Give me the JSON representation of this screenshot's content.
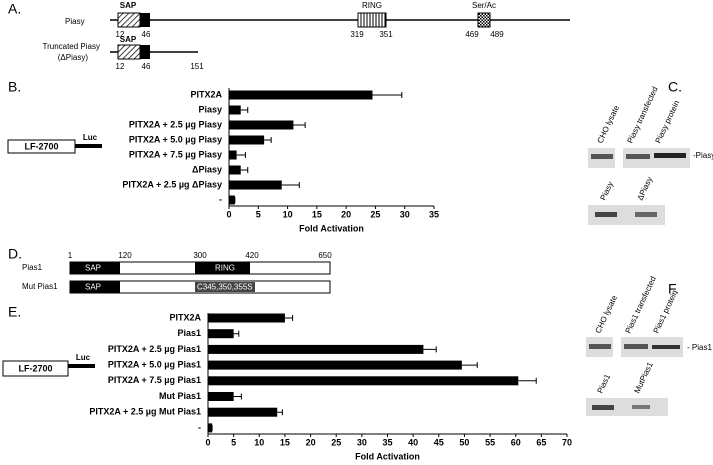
{
  "panel_a": {
    "label": "A.",
    "protein": "Piasy",
    "sap": "SAP",
    "ring": "RING",
    "serac": "Ser/Ac",
    "positions": [
      "12",
      "46",
      "319",
      "351",
      "469",
      "489"
    ],
    "truncated_line1": "Truncated Piasy",
    "truncated_line2": "(ΔPiasy)",
    "truncated_sap": "SAP",
    "truncated_positions": [
      "12",
      "46",
      "151"
    ]
  },
  "chart_data": [
    {
      "type": "bar",
      "panel_label": "B.",
      "reporter": {
        "label": "LF-2700",
        "tag": "Luc"
      },
      "categories": [
        "PITX2A",
        "Piasy",
        "PITX2A + 2.5 µg Piasy",
        "PITX2A + 5.0 µg Piasy",
        "PITX2A + 7.5 µg Piasy",
        "ΔPiasy",
        "PITX2A + 2.5 µg ΔPiasy",
        "-"
      ],
      "values": [
        24.5,
        2,
        11,
        6,
        1.3,
        2,
        9,
        1
      ],
      "errors": [
        5,
        1.2,
        2,
        1.2,
        1.5,
        1.2,
        3,
        0
      ],
      "color": "#000000",
      "xlim": [
        0,
        35
      ],
      "xticks": [
        0,
        5,
        10,
        15,
        20,
        25,
        30,
        35
      ],
      "xlabel": "Fold Activation",
      "grid": false
    },
    {
      "type": "bar",
      "panel_label": "E.",
      "reporter": {
        "label": "LF-2700",
        "tag": "Luc"
      },
      "categories": [
        "PITX2A",
        "Pias1",
        "PITX2A + 2.5 µg Pias1",
        "PITX2A + 5.0 µg Pias1",
        "PITX2A + 7.5 µg Pias1",
        "Mut Pias1",
        "PITX2A + 2.5 µg Mut Pias1",
        "-"
      ],
      "values": [
        15,
        5,
        42,
        49.5,
        60.5,
        5,
        13.5,
        0.8
      ],
      "errors": [
        1.5,
        1,
        2.5,
        3,
        3.5,
        1.5,
        1,
        0
      ],
      "color": "#000000",
      "xlim": [
        0,
        70
      ],
      "xticks": [
        0,
        5,
        10,
        15,
        20,
        25,
        30,
        35,
        40,
        45,
        50,
        55,
        60,
        65,
        70
      ],
      "xlabel": "Fold Activation",
      "grid": false
    }
  ],
  "panel_c": {
    "label": "C.",
    "lanes": [
      "CHO lysate",
      "Piasy transfected",
      "Piasy protein"
    ],
    "band": "-Piasy",
    "lanes2": [
      "Piasy",
      "ΔPiasy"
    ]
  },
  "panel_d": {
    "label": "D.",
    "wild": "Pias1",
    "mutant": "Mut Pias1",
    "positions": [
      "1",
      "120",
      "300",
      "420",
      "650"
    ],
    "sap": "SAP",
    "ring": "RING",
    "mutant_sap": "SAP",
    "mutation": "C345,350,355S"
  },
  "panel_f": {
    "label": "F.",
    "lanes": [
      "CHO lysate",
      "Pias1 transfected",
      "Pias1 protein"
    ],
    "band": "- Pias1",
    "lanes2": [
      "Pias1",
      "MutPias1"
    ]
  }
}
